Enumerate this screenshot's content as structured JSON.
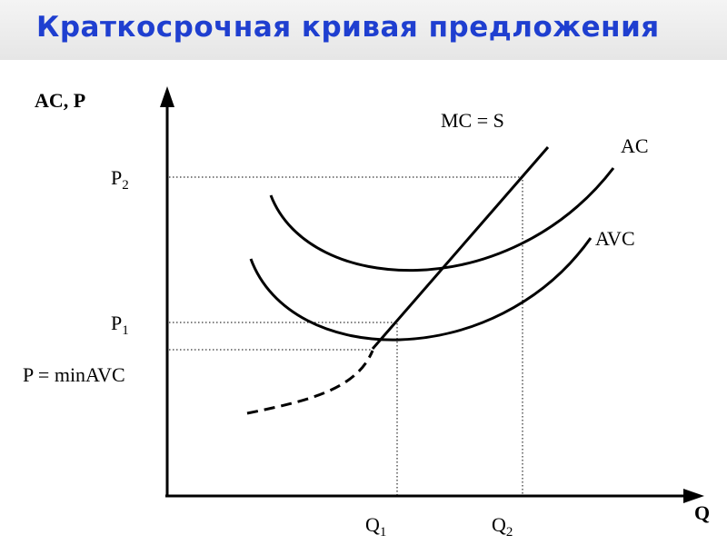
{
  "header": {
    "title": "Краткосрочная кривая предложения"
  },
  "axes": {
    "y_label": "AC, P",
    "x_label": "Q"
  },
  "curves": {
    "mc": "MC = S",
    "ac": "AC",
    "avc": "AVC"
  },
  "y_labels": [
    {
      "base": "P",
      "sub": "2"
    },
    {
      "base": "P",
      "sub": "1"
    },
    {
      "text": "P = minAVC"
    }
  ],
  "x_labels": [
    {
      "base": "Q",
      "sub": "1"
    },
    {
      "base": "Q",
      "sub": "2"
    }
  ]
}
